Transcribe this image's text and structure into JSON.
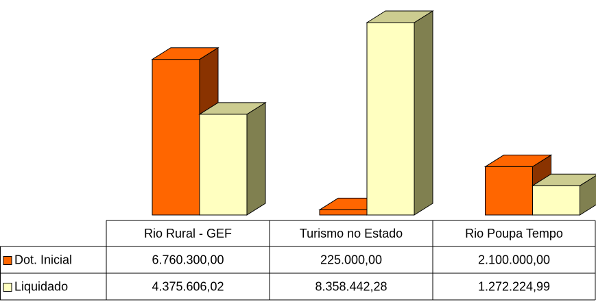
{
  "chart_data": {
    "type": "bar3d",
    "categories": [
      "Rio Rural - GEF",
      "Turismo no Estado",
      "Rio Poupa Tempo"
    ],
    "series": [
      {
        "name": "Dot. Inicial",
        "color": "#ff6600",
        "side_color": "#8a3300",
        "values": [
          6760300,
          225000,
          2100000
        ],
        "value_labels": [
          "6.760.300,00",
          "225.000,00",
          "2.100.000,00"
        ]
      },
      {
        "name": "Liquidado",
        "color": "#ffffc0",
        "side_color": "#808050",
        "values": [
          4375606.02,
          8358442.28,
          1272224.99
        ],
        "value_labels": [
          "4.375.606,02",
          "8.358.442,28",
          "1.272.224,99"
        ]
      }
    ]
  }
}
